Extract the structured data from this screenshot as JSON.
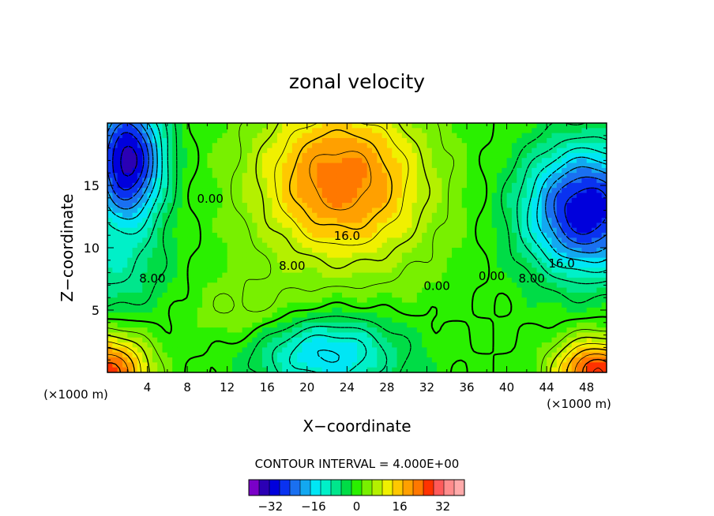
{
  "chart_data": {
    "type": "heatmap",
    "title": "zonal velocity",
    "xlabel": "X−coordinate",
    "ylabel": "Z−coordinate",
    "x_unit_left": "(×1000 m)",
    "x_unit_right": "(×1000 m)",
    "xlim": [
      0,
      50
    ],
    "ylim": [
      0,
      20
    ],
    "x_ticks": [
      4,
      8,
      12,
      16,
      20,
      24,
      28,
      32,
      36,
      40,
      44,
      48
    ],
    "y_ticks": [
      5,
      10,
      15
    ],
    "contour_interval_text": "CONTOUR INTERVAL = 4.000E+00",
    "contour_interval": 4,
    "value_range": [
      -40,
      40
    ],
    "contour_labels": [
      {
        "text": "0.00",
        "x": 10.3,
        "y": 14
      },
      {
        "text": "16.0",
        "x": 24.0,
        "y": 11
      },
      {
        "text": "8.00",
        "x": 18.5,
        "y": 8.6
      },
      {
        "text": "8.00",
        "x": 4.5,
        "y": 7.6
      },
      {
        "text": "0.00",
        "x": 33.0,
        "y": 7.0
      },
      {
        "text": "0.00",
        "x": 38.5,
        "y": 7.8
      },
      {
        "text": "8.00",
        "x": 42.5,
        "y": 7.6
      },
      {
        "text": "16.0",
        "x": 45.5,
        "y": 8.8
      }
    ],
    "colorbar": {
      "colors": [
        "#7a00c8",
        "#2b00b4",
        "#0000dc",
        "#0a32f0",
        "#1a70f0",
        "#13a8f0",
        "#00e6f5",
        "#00f0c8",
        "#00e68c",
        "#00dc46",
        "#2af000",
        "#78f000",
        "#b4f000",
        "#f0f000",
        "#ffc800",
        "#ffa000",
        "#ff7800",
        "#ff3200",
        "#ff5a5a",
        "#ff8c8c",
        "#ffaaaa"
      ],
      "tick_values": [
        -32,
        -16,
        0,
        16,
        32
      ],
      "tick_labels": [
        "−32",
        "−16",
        "0",
        "16",
        "32"
      ],
      "min": -40,
      "max": 40
    }
  }
}
